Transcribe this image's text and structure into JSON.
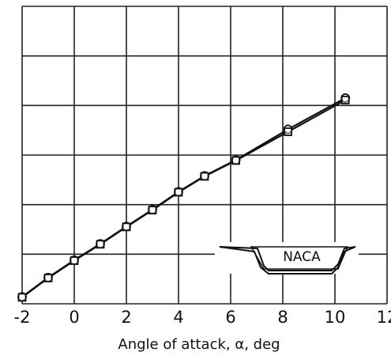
{
  "chart_data": {
    "type": "line",
    "x_label": "Angle of attack, α, deg",
    "logo": "NACA",
    "xlim": [
      -2,
      12
    ],
    "xticks": [
      -2,
      0,
      2,
      4,
      6,
      8,
      10,
      12
    ],
    "ylim": [
      0,
      6
    ],
    "yticks": [
      0,
      1,
      2,
      3,
      4,
      5,
      6
    ],
    "grid": true,
    "x": [
      -2,
      -1,
      0,
      1,
      2,
      3,
      4,
      5,
      6.2,
      8.2,
      10.4
    ],
    "series": [
      {
        "marker": "circle",
        "color": "#111111",
        "values": [
          0.14,
          0.53,
          0.88,
          1.21,
          1.56,
          1.9,
          2.26,
          2.58,
          2.9,
          3.52,
          4.15
        ]
      },
      {
        "marker": "square",
        "color": "#111111",
        "values": [
          0.13,
          0.52,
          0.87,
          1.2,
          1.55,
          1.89,
          2.25,
          2.57,
          2.89,
          3.47,
          4.11
        ]
      }
    ]
  }
}
